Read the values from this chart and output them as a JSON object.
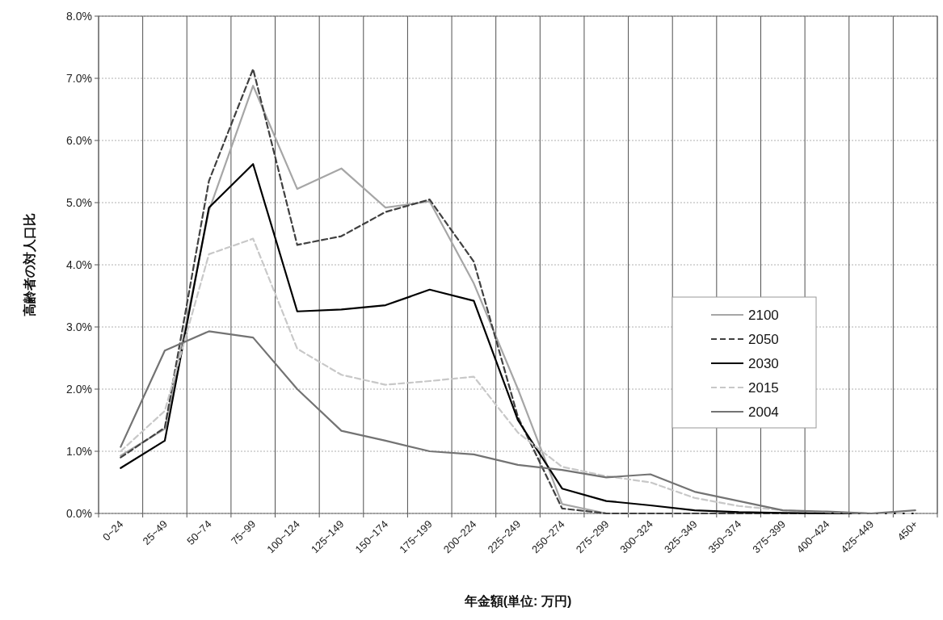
{
  "chart_data": {
    "type": "line",
    "xlabel": "年金額(単位: 万円)",
    "ylabel": "高齢者の対人口比",
    "categories": [
      "0~24",
      "25~49",
      "50~74",
      "75~99",
      "100~124",
      "125~149",
      "150~174",
      "175~199",
      "200~224",
      "225~249",
      "250~274",
      "275~299",
      "300~324",
      "325~349",
      "350~374",
      "375~399",
      "400~424",
      "425~449",
      "450+"
    ],
    "series": [
      {
        "name": "2100",
        "color": "#a6a6a6",
        "line_style": "solid",
        "values": [
          0.93,
          1.36,
          4.87,
          6.88,
          5.22,
          5.55,
          4.92,
          5.02,
          3.7,
          2.0,
          0.15,
          0,
          0,
          0,
          0,
          0,
          0,
          0,
          0
        ]
      },
      {
        "name": "2050",
        "color": "#404040",
        "line_style": "dashed",
        "values": [
          0.9,
          1.38,
          5.35,
          7.15,
          4.32,
          4.46,
          4.85,
          5.05,
          4.05,
          1.55,
          0.08,
          0,
          0,
          0,
          0,
          0,
          0,
          0,
          0
        ]
      },
      {
        "name": "2030",
        "color": "#000000",
        "line_style": "solid",
        "values": [
          0.73,
          1.17,
          4.92,
          5.62,
          3.25,
          3.28,
          3.35,
          3.6,
          3.42,
          1.5,
          0.4,
          0.2,
          0.13,
          0.05,
          0.02,
          0.01,
          0,
          0,
          0
        ]
      },
      {
        "name": "2015",
        "color": "#c8c8c8",
        "line_style": "dashed",
        "values": [
          1.0,
          1.65,
          4.17,
          4.42,
          2.65,
          2.23,
          2.07,
          2.13,
          2.2,
          1.3,
          0.75,
          0.6,
          0.5,
          0.25,
          0.12,
          0.05,
          0.02,
          0,
          0
        ]
      },
      {
        "name": "2004",
        "color": "#737373",
        "line_style": "solid",
        "values": [
          1.07,
          2.62,
          2.93,
          2.83,
          2.0,
          1.33,
          1.17,
          1.0,
          0.95,
          0.78,
          0.7,
          0.58,
          0.63,
          0.35,
          0.2,
          0.05,
          0.03,
          0,
          0.05
        ]
      }
    ],
    "ylim": [
      0,
      8
    ],
    "yticks": [
      {
        "value": 0,
        "label": "0.0%"
      },
      {
        "value": 1,
        "label": "1.0%"
      },
      {
        "value": 2,
        "label": "2.0%"
      },
      {
        "value": 3,
        "label": "3.0%"
      },
      {
        "value": 4,
        "label": "4.0%"
      },
      {
        "value": 5,
        "label": "5.0%"
      },
      {
        "value": 6,
        "label": "6.0%"
      },
      {
        "value": 7,
        "label": "7.0%"
      },
      {
        "value": 8,
        "label": "8.0%"
      }
    ],
    "grid": true,
    "legend": "right"
  }
}
